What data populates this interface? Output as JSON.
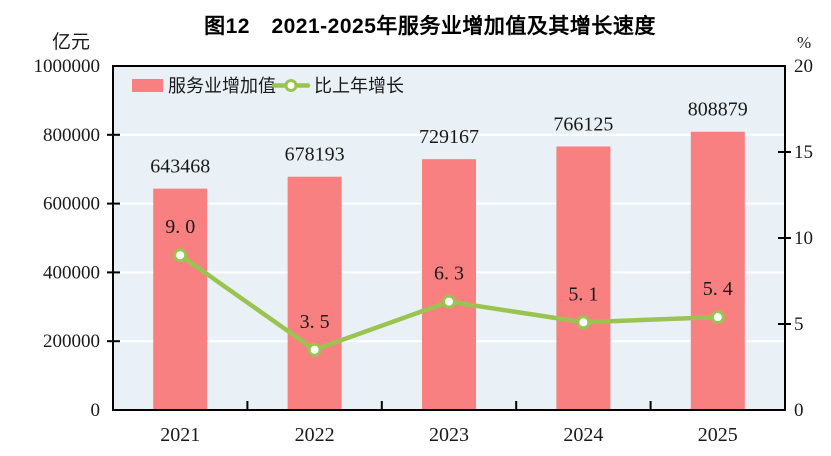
{
  "title": "图12　2021-2025年服务业增加值及其增长速度",
  "left_axis": {
    "unit": "亿元",
    "tick_labels": [
      "0",
      "200000",
      "400000",
      "600000",
      "800000",
      "1000000"
    ],
    "tick_values": [
      0,
      200000,
      400000,
      600000,
      800000,
      1000000
    ]
  },
  "right_axis": {
    "unit": "%",
    "tick_labels": [
      "0",
      "5",
      "10",
      "15",
      "20"
    ],
    "tick_values": [
      0,
      5,
      10,
      15,
      20
    ]
  },
  "legend": [
    {
      "label": "服务业增加值",
      "type": "bar"
    },
    {
      "label": "比上年增长",
      "type": "line"
    }
  ],
  "colors": {
    "bar": "#f98080",
    "line": "#9ac351",
    "marker_fill": "#ffffff",
    "plot_bg": "#e9f1f6",
    "gridline": "#ffffff",
    "frame": "#000000",
    "text": "#1a1a1a"
  },
  "chart_data": {
    "type": "bar+line",
    "title": "图12 2021-2025年服务业增加值及其增长速度",
    "categories": [
      "2021",
      "2022",
      "2023",
      "2024",
      "2025"
    ],
    "series": [
      {
        "name": "服务业增加值",
        "type": "bar",
        "axis": "left",
        "values": [
          643468,
          678193,
          729167,
          766125,
          808879
        ],
        "labels": [
          "643468",
          "678193",
          "729167",
          "766125",
          "808879"
        ]
      },
      {
        "name": "比上年增长",
        "type": "line",
        "axis": "right",
        "values": [
          9.0,
          3.5,
          6.3,
          5.1,
          5.4
        ],
        "labels": [
          "9. 0",
          "3. 5",
          "6. 3",
          "5. 1",
          "5. 4"
        ]
      }
    ],
    "left_ylabel": "亿元",
    "right_ylabel": "%",
    "left_ylim": [
      0,
      1000000
    ],
    "right_ylim": [
      0,
      20
    ],
    "grid": true,
    "legend_position": "top-left-inside"
  }
}
